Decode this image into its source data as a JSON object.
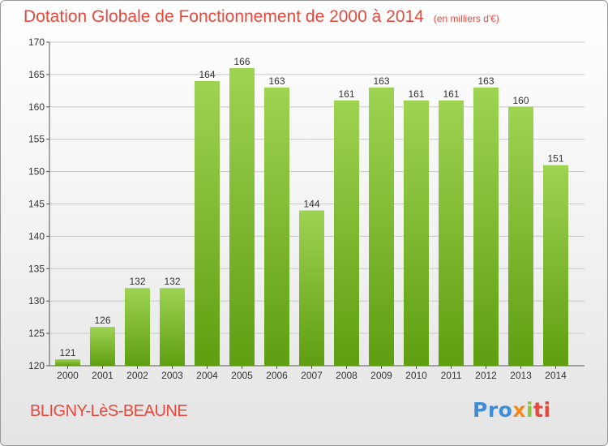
{
  "header": {
    "title": "Dotation Globale de Fonctionnement de 2000 à 2014",
    "unit": "(en milliers d'€)"
  },
  "footer": {
    "commune": "BLIGNY-LèS-BEAUNE",
    "logo": {
      "part1": "Pro",
      "part2": "x",
      "part3": "i",
      "part4": "ti"
    }
  },
  "colors": {
    "title": "#e8483c",
    "bar_light": "#9fd352",
    "bar_dark": "#5e9e10",
    "grid": "#c8c8c8"
  },
  "chart_data": {
    "type": "bar",
    "title": "Dotation Globale de Fonctionnement de 2000 à 2014",
    "xlabel": "",
    "ylabel": "",
    "categories": [
      "2000",
      "2001",
      "2002",
      "2003",
      "2004",
      "2005",
      "2006",
      "2007",
      "2008",
      "2009",
      "2010",
      "2011",
      "2012",
      "2013",
      "2014"
    ],
    "values": [
      121,
      126,
      132,
      132,
      164,
      166,
      163,
      144,
      161,
      163,
      161,
      161,
      163,
      160,
      151
    ],
    "ylim": [
      120,
      170
    ],
    "yticks": [
      120,
      125,
      130,
      135,
      140,
      145,
      150,
      155,
      160,
      165,
      170
    ],
    "grid": true,
    "data_labels": true
  }
}
